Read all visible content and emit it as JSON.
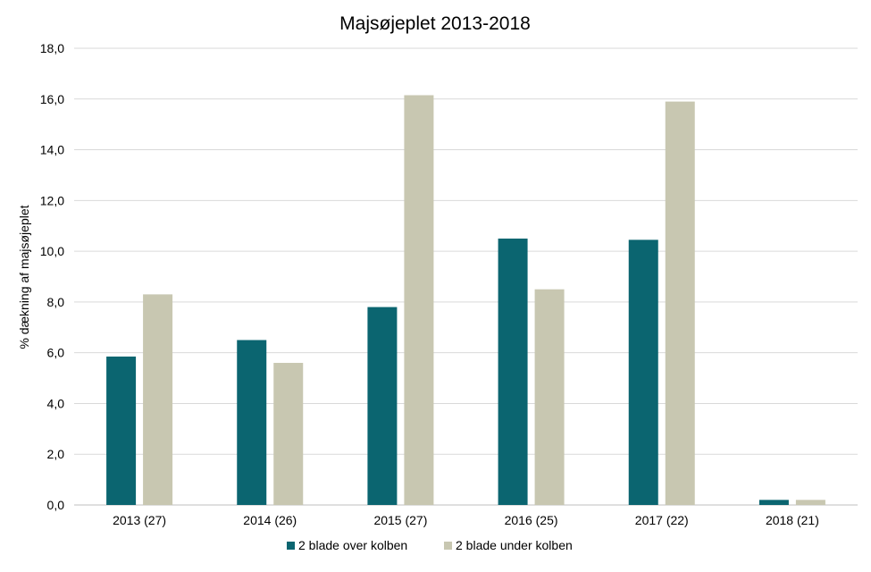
{
  "chart_data": {
    "type": "bar",
    "title": "Majsøjeplet 2013-2018",
    "xlabel": "",
    "ylabel": "% dækning af majsøjeplet",
    "ylim": [
      0,
      18
    ],
    "yticks": [
      "0,0",
      "2,0",
      "4,0",
      "6,0",
      "8,0",
      "10,0",
      "12,0",
      "14,0",
      "16,0",
      "18,0"
    ],
    "grid": true,
    "legend_position": "bottom",
    "categories": [
      "2013 (27)",
      "2014 (26)",
      "2015 (27)",
      "2016 (25)",
      "2017 (22)",
      "2018 (21)"
    ],
    "series": [
      {
        "name": "2 blade over kolben",
        "color": "#0b6570",
        "values": [
          5.85,
          6.5,
          7.8,
          10.5,
          10.45,
          0.2
        ]
      },
      {
        "name": "2 blade under kolben",
        "color": "#c8c7b1",
        "values": [
          8.3,
          5.6,
          16.15,
          8.5,
          15.9,
          0.2
        ]
      }
    ]
  }
}
